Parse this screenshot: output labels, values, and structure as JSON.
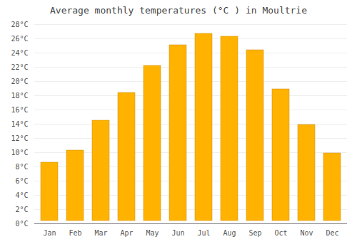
{
  "chart_data": {
    "type": "bar",
    "title": "Average monthly temperatures (°C ) in Moultrie",
    "categories": [
      "Jan",
      "Feb",
      "Mar",
      "Apr",
      "May",
      "Jun",
      "Jul",
      "Aug",
      "Sep",
      "Oct",
      "Nov",
      "Dec"
    ],
    "values": [
      9.0,
      10.7,
      14.9,
      18.8,
      22.6,
      25.5,
      27.1,
      26.7,
      24.8,
      19.3,
      14.3,
      10.3
    ],
    "color": "#FFB300",
    "ylim": [
      0,
      28
    ],
    "yticks": [
      {
        "value": 0,
        "label": "0°C"
      },
      {
        "value": 2,
        "label": "2°C"
      },
      {
        "value": 4,
        "label": "4°C"
      },
      {
        "value": 6,
        "label": "6°C"
      },
      {
        "value": 8,
        "label": "8°C"
      },
      {
        "value": 10,
        "label": "10°C"
      },
      {
        "value": 12,
        "label": "12°C"
      },
      {
        "value": 14,
        "label": "14°C"
      },
      {
        "value": 16,
        "label": "16°C"
      },
      {
        "value": 18,
        "label": "18°C"
      },
      {
        "value": 20,
        "label": "20°C"
      },
      {
        "value": 22,
        "label": "22°C"
      },
      {
        "value": 24,
        "label": "24°C"
      },
      {
        "value": 26,
        "label": "26°C"
      },
      {
        "value": 28,
        "label": "28°C"
      }
    ],
    "grid": true
  }
}
